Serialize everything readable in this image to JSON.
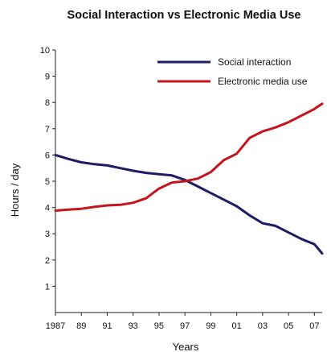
{
  "chart_data": {
    "type": "line",
    "title": "Social Interaction vs Electronic Media Use",
    "xlabel": "Years",
    "ylabel": "Hours / day",
    "ylim": [
      0,
      10
    ],
    "xlim": [
      1987,
      2007.6
    ],
    "grid": false,
    "legend_position": "top-right",
    "x_ticks": [
      1987,
      1989,
      1991,
      1993,
      1995,
      1997,
      1999,
      2001,
      2003,
      2005,
      2007
    ],
    "x_tick_labels": [
      "1987",
      "89",
      "91",
      "93",
      "95",
      "97",
      "99",
      "01",
      "03",
      "05",
      "07"
    ],
    "y_ticks": [
      1,
      2,
      3,
      4,
      5,
      6,
      7,
      8,
      9,
      10
    ],
    "y_tick_labels": [
      "1",
      "2",
      "3",
      "4",
      "5",
      "6",
      "7",
      "8",
      "9",
      "10"
    ],
    "x": [
      1987,
      1988,
      1989,
      1990,
      1991,
      1992,
      1993,
      1994,
      1995,
      1996,
      1997,
      1998,
      1999,
      2000,
      2001,
      2002,
      2003,
      2004,
      2005,
      2006,
      2007,
      2007.6
    ],
    "series": [
      {
        "name": "Social interaction",
        "color": "#1c1c64",
        "values": [
          6.0,
          5.85,
          5.72,
          5.65,
          5.6,
          5.5,
          5.4,
          5.32,
          5.27,
          5.22,
          5.05,
          4.8,
          4.55,
          4.3,
          4.05,
          3.7,
          3.4,
          3.3,
          3.05,
          2.8,
          2.6,
          2.25
        ]
      },
      {
        "name": "Electronic media use",
        "color": "#c4151c",
        "values": [
          3.88,
          3.92,
          3.95,
          4.02,
          4.08,
          4.1,
          4.18,
          4.35,
          4.72,
          4.95,
          5.0,
          5.1,
          5.35,
          5.8,
          6.05,
          6.65,
          6.9,
          7.05,
          7.25,
          7.5,
          7.75,
          7.95
        ]
      }
    ]
  }
}
